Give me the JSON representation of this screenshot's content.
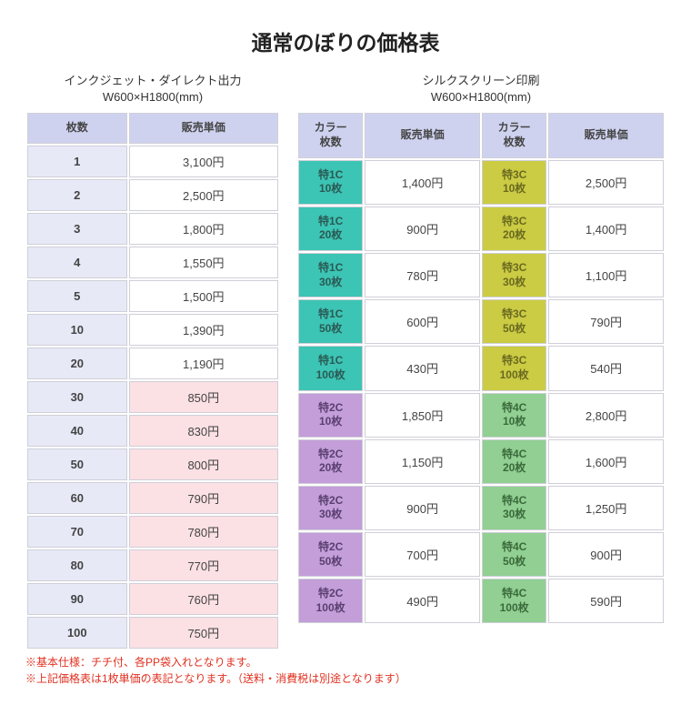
{
  "title": "通常のぼりの価格表",
  "left": {
    "heading_line1": "インクジェット・ダイレクト出力",
    "heading_line2": "W600×H1800(mm)",
    "col_qty": "枚数",
    "col_price": "販売単価",
    "rows": [
      {
        "qty": "1",
        "price": "3,100円",
        "pink": false
      },
      {
        "qty": "2",
        "price": "2,500円",
        "pink": false
      },
      {
        "qty": "3",
        "price": "1,800円",
        "pink": false
      },
      {
        "qty": "4",
        "price": "1,550円",
        "pink": false
      },
      {
        "qty": "5",
        "price": "1,500円",
        "pink": false
      },
      {
        "qty": "10",
        "price": "1,390円",
        "pink": false
      },
      {
        "qty": "20",
        "price": "1,190円",
        "pink": false
      },
      {
        "qty": "30",
        "price": "850円",
        "pink": true
      },
      {
        "qty": "40",
        "price": "830円",
        "pink": true
      },
      {
        "qty": "50",
        "price": "800円",
        "pink": true
      },
      {
        "qty": "60",
        "price": "790円",
        "pink": true
      },
      {
        "qty": "70",
        "price": "780円",
        "pink": true
      },
      {
        "qty": "80",
        "price": "770円",
        "pink": true
      },
      {
        "qty": "90",
        "price": "760円",
        "pink": true
      },
      {
        "qty": "100",
        "price": "750円",
        "pink": true
      }
    ]
  },
  "right": {
    "heading_line1": "シルクスクリーン印刷",
    "heading_line2": "W600×H1800(mm)",
    "col_label": "カラー\n枚数",
    "col_price": "販売単価",
    "rows": [
      {
        "l1": "特1C",
        "l2": "10枚",
        "lc": "c1",
        "lp": "1,400円",
        "r1": "特3C",
        "r2": "10枚",
        "rc": "c3",
        "rp": "2,500円"
      },
      {
        "l1": "特1C",
        "l2": "20枚",
        "lc": "c1",
        "lp": "900円",
        "r1": "特3C",
        "r2": "20枚",
        "rc": "c3",
        "rp": "1,400円"
      },
      {
        "l1": "特1C",
        "l2": "30枚",
        "lc": "c1",
        "lp": "780円",
        "r1": "特3C",
        "r2": "30枚",
        "rc": "c3",
        "rp": "1,100円"
      },
      {
        "l1": "特1C",
        "l2": "50枚",
        "lc": "c1",
        "lp": "600円",
        "r1": "特3C",
        "r2": "50枚",
        "rc": "c3",
        "rp": "790円"
      },
      {
        "l1": "特1C",
        "l2": "100枚",
        "lc": "c1",
        "lp": "430円",
        "r1": "特3C",
        "r2": "100枚",
        "rc": "c3",
        "rp": "540円"
      },
      {
        "l1": "特2C",
        "l2": "10枚",
        "lc": "c2",
        "lp": "1,850円",
        "r1": "特4C",
        "r2": "10枚",
        "rc": "c4",
        "rp": "2,800円"
      },
      {
        "l1": "特2C",
        "l2": "20枚",
        "lc": "c2",
        "lp": "1,150円",
        "r1": "特4C",
        "r2": "20枚",
        "rc": "c4",
        "rp": "1,600円"
      },
      {
        "l1": "特2C",
        "l2": "30枚",
        "lc": "c2",
        "lp": "900円",
        "r1": "特4C",
        "r2": "30枚",
        "rc": "c4",
        "rp": "1,250円"
      },
      {
        "l1": "特2C",
        "l2": "50枚",
        "lc": "c2",
        "lp": "700円",
        "r1": "特4C",
        "r2": "50枚",
        "rc": "c4",
        "rp": "900円"
      },
      {
        "l1": "特2C",
        "l2": "100枚",
        "lc": "c2",
        "lp": "490円",
        "r1": "特4C",
        "r2": "100枚",
        "rc": "c4",
        "rp": "590円"
      }
    ]
  },
  "notes": {
    "line1": "※基本仕様：チチ付、各PP袋入れとなります。",
    "line2": "※上記価格表は1枚単価の表記となります。（送料・消費税は別途となります）"
  },
  "colors": {
    "header_bg": "#cfd2ef",
    "inkjet_qty_bg": "#e7e9f7",
    "price_pink_bg": "#fbe0e4",
    "c1": "#3cc4b4",
    "c2": "#c39ed9",
    "c3": "#cbcb44",
    "c4": "#91cf92",
    "note_color": "#e03020",
    "border": "#cfcfd8"
  }
}
